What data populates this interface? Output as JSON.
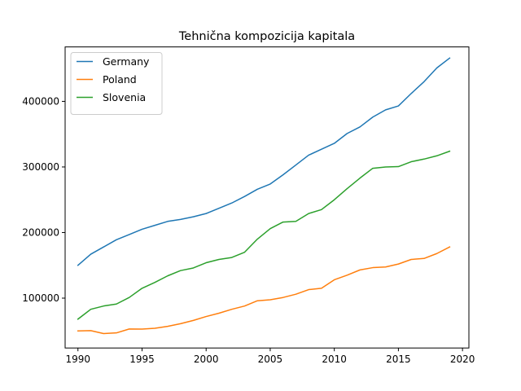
{
  "chart_data": {
    "type": "line",
    "title": "Tehnična kompozicija kapitala",
    "xlabel": "",
    "ylabel": "",
    "x": [
      1990,
      1991,
      1992,
      1993,
      1994,
      1995,
      1996,
      1997,
      1998,
      1999,
      2000,
      2001,
      2002,
      2003,
      2004,
      2005,
      2006,
      2007,
      2008,
      2009,
      2010,
      2011,
      2012,
      2013,
      2014,
      2015,
      2016,
      2017,
      2018,
      2019
    ],
    "xlim": [
      1989,
      2020.5
    ],
    "ylim": [
      24000,
      483000
    ],
    "xticks": [
      1990,
      1995,
      2000,
      2005,
      2010,
      2015,
      2020
    ],
    "yticks": [
      100000,
      200000,
      300000,
      400000
    ],
    "grid": false,
    "legend_position": "upper-left",
    "series": [
      {
        "name": "Germany",
        "color": "#1f77b4",
        "values": [
          150000,
          167000,
          178000,
          189000,
          197000,
          205000,
          211000,
          217000,
          220000,
          224000,
          229000,
          237000,
          245000,
          255000,
          266000,
          274000,
          288000,
          303000,
          318000,
          327000,
          336000,
          351000,
          361000,
          376000,
          387000,
          393000,
          412000,
          430000,
          451000,
          466000
        ]
      },
      {
        "name": "Poland",
        "color": "#ff7f0e",
        "values": [
          50000,
          50500,
          46000,
          47000,
          53000,
          52800,
          54000,
          57000,
          61000,
          66000,
          72000,
          77000,
          83000,
          88000,
          96000,
          97500,
          101000,
          106000,
          113000,
          115000,
          128000,
          135000,
          143000,
          146500,
          147500,
          152000,
          159000,
          160500,
          168000,
          178000
        ]
      },
      {
        "name": "Slovenia",
        "color": "#2ca02c",
        "values": [
          68000,
          83000,
          88000,
          91000,
          101000,
          115000,
          124000,
          134000,
          142000,
          146000,
          154000,
          159000,
          162000,
          170000,
          190000,
          206000,
          216000,
          217000,
          229000,
          235000,
          250000,
          267000,
          283000,
          298000,
          300000,
          300500,
          308000,
          312000,
          317000,
          324000
        ]
      }
    ]
  }
}
